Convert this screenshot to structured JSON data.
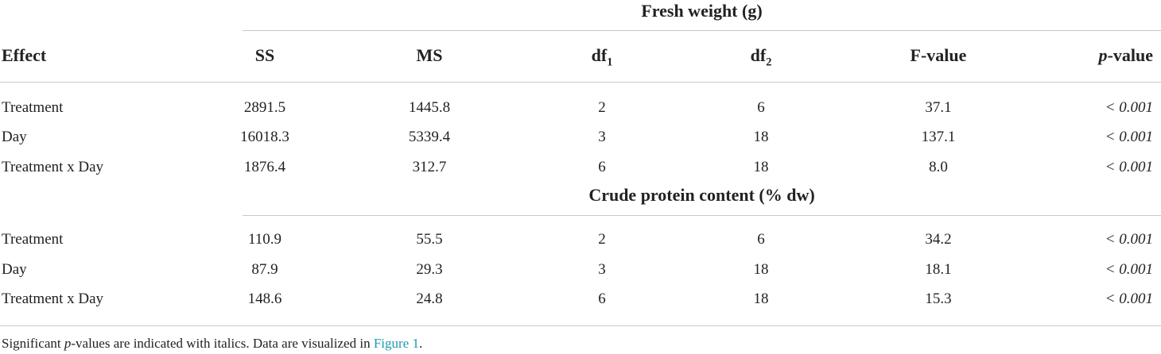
{
  "table": {
    "columns": [
      "Effect",
      "SS",
      "MS",
      {
        "text": "df",
        "sub": "1"
      },
      {
        "text": "df",
        "sub": "2"
      },
      "F-value",
      {
        "italic": "p",
        "text": "-value"
      }
    ],
    "sections": [
      {
        "title": "Fresh weight (g)",
        "rows": [
          [
            "Treatment",
            "2891.5",
            "1445.8",
            "2",
            "6",
            "37.1",
            "< 0.001"
          ],
          [
            "Day",
            "16018.3",
            "5339.4",
            "3",
            "18",
            "137.1",
            "< 0.001"
          ],
          [
            "Treatment x Day",
            "1876.4",
            "312.7",
            "6",
            "18",
            "8.0",
            "< 0.001"
          ]
        ]
      },
      {
        "title": "Crude protein content (% dw)",
        "rows": [
          [
            "Treatment",
            "110.9",
            "55.5",
            "2",
            "6",
            "34.2",
            "< 0.001"
          ],
          [
            "Day",
            "87.9",
            "29.3",
            "3",
            "18",
            "18.1",
            "< 0.001"
          ],
          [
            "Treatment x Day",
            "148.6",
            "24.8",
            "6",
            "18",
            "15.3",
            "< 0.001"
          ]
        ]
      }
    ]
  },
  "footnote": {
    "before": "Significant ",
    "italic": "p",
    "middle": "-values are indicated with italics. Data are visualized in ",
    "link": "Figure 1",
    "after": "."
  }
}
